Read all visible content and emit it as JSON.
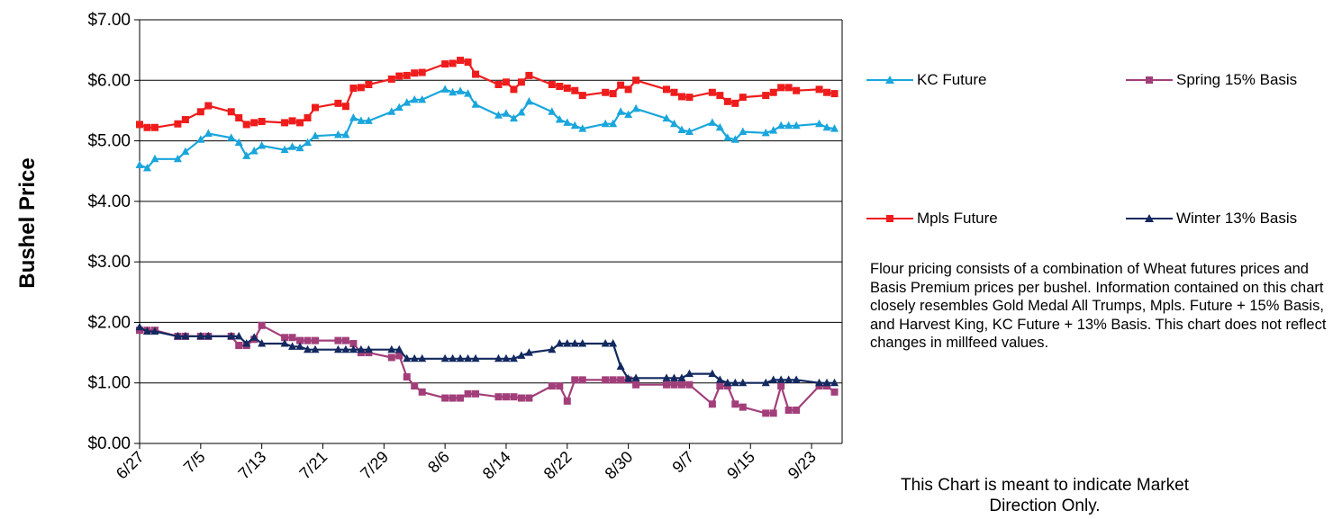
{
  "chart_data": {
    "type": "line",
    "title": "",
    "xlabel": "",
    "ylabel": "Bushel Price",
    "ylim": [
      0,
      7
    ],
    "yticks": [
      "$0.00",
      "$1.00",
      "$2.00",
      "$3.00",
      "$4.00",
      "$5.00",
      "$6.00",
      "$7.00"
    ],
    "xticks": [
      "6/27",
      "7/5",
      "7/13",
      "7/21",
      "7/29",
      "8/6",
      "8/14",
      "8/22",
      "8/30",
      "9/7",
      "9/15",
      "9/23"
    ],
    "x_range": [
      "6/27",
      "9/27"
    ],
    "grid": "horizontal",
    "legend_position": "right",
    "series": [
      {
        "name": "KC Future",
        "color": "#1aa6dc",
        "marker": "triangle",
        "points": [
          [
            "6/27",
            4.6
          ],
          [
            "6/28",
            4.55
          ],
          [
            "6/29",
            4.7
          ],
          [
            "7/2",
            4.7
          ],
          [
            "7/3",
            4.82
          ],
          [
            "7/5",
            5.02
          ],
          [
            "7/6",
            5.12
          ],
          [
            "7/9",
            5.05
          ],
          [
            "7/10",
            4.97
          ],
          [
            "7/11",
            4.75
          ],
          [
            "7/12",
            4.83
          ],
          [
            "7/13",
            4.92
          ],
          [
            "7/16",
            4.85
          ],
          [
            "7/17",
            4.9
          ],
          [
            "7/18",
            4.88
          ],
          [
            "7/19",
            4.97
          ],
          [
            "7/20",
            5.08
          ],
          [
            "7/23",
            5.1
          ],
          [
            "7/24",
            5.1
          ],
          [
            "7/25",
            5.38
          ],
          [
            "7/26",
            5.33
          ],
          [
            "7/27",
            5.33
          ],
          [
            "7/30",
            5.48
          ],
          [
            "7/31",
            5.55
          ],
          [
            "8/1",
            5.63
          ],
          [
            "8/2",
            5.68
          ],
          [
            "8/3",
            5.68
          ],
          [
            "8/6",
            5.85
          ],
          [
            "8/7",
            5.8
          ],
          [
            "8/8",
            5.82
          ],
          [
            "8/9",
            5.78
          ],
          [
            "8/10",
            5.6
          ],
          [
            "8/13",
            5.42
          ],
          [
            "8/14",
            5.45
          ],
          [
            "8/15",
            5.37
          ],
          [
            "8/16",
            5.47
          ],
          [
            "8/17",
            5.65
          ],
          [
            "8/20",
            5.48
          ],
          [
            "8/21",
            5.35
          ],
          [
            "8/22",
            5.3
          ],
          [
            "8/23",
            5.25
          ],
          [
            "8/24",
            5.2
          ],
          [
            "8/27",
            5.28
          ],
          [
            "8/28",
            5.28
          ],
          [
            "8/29",
            5.48
          ],
          [
            "8/30",
            5.43
          ],
          [
            "8/31",
            5.53
          ],
          [
            "9/4",
            5.37
          ],
          [
            "9/5",
            5.28
          ],
          [
            "9/6",
            5.18
          ],
          [
            "9/7",
            5.15
          ],
          [
            "9/10",
            5.3
          ],
          [
            "9/11",
            5.22
          ],
          [
            "9/12",
            5.05
          ],
          [
            "9/13",
            5.02
          ],
          [
            "9/14",
            5.15
          ],
          [
            "9/17",
            5.13
          ],
          [
            "9/18",
            5.17
          ],
          [
            "9/19",
            5.25
          ],
          [
            "9/20",
            5.25
          ],
          [
            "9/21",
            5.25
          ],
          [
            "9/24",
            5.28
          ],
          [
            "9/25",
            5.22
          ],
          [
            "9/26",
            5.2
          ]
        ]
      },
      {
        "name": "Mpls Future",
        "color": "#ee1c1c",
        "marker": "square",
        "points": [
          [
            "6/27",
            5.27
          ],
          [
            "6/28",
            5.22
          ],
          [
            "6/29",
            5.22
          ],
          [
            "7/2",
            5.28
          ],
          [
            "7/3",
            5.35
          ],
          [
            "7/5",
            5.48
          ],
          [
            "7/6",
            5.58
          ],
          [
            "7/9",
            5.48
          ],
          [
            "7/10",
            5.38
          ],
          [
            "7/11",
            5.27
          ],
          [
            "7/12",
            5.3
          ],
          [
            "7/13",
            5.32
          ],
          [
            "7/16",
            5.3
          ],
          [
            "7/17",
            5.33
          ],
          [
            "7/18",
            5.3
          ],
          [
            "7/19",
            5.38
          ],
          [
            "7/20",
            5.55
          ],
          [
            "7/23",
            5.62
          ],
          [
            "7/24",
            5.57
          ],
          [
            "7/25",
            5.87
          ],
          [
            "7/26",
            5.88
          ],
          [
            "7/27",
            5.93
          ],
          [
            "7/30",
            6.02
          ],
          [
            "7/31",
            6.07
          ],
          [
            "8/1",
            6.08
          ],
          [
            "8/2",
            6.12
          ],
          [
            "8/3",
            6.13
          ],
          [
            "8/6",
            6.27
          ],
          [
            "8/7",
            6.28
          ],
          [
            "8/8",
            6.33
          ],
          [
            "8/9",
            6.3
          ],
          [
            "8/10",
            6.1
          ],
          [
            "8/13",
            5.93
          ],
          [
            "8/14",
            5.97
          ],
          [
            "8/15",
            5.85
          ],
          [
            "8/16",
            5.97
          ],
          [
            "8/17",
            6.08
          ],
          [
            "8/20",
            5.93
          ],
          [
            "8/21",
            5.9
          ],
          [
            "8/22",
            5.87
          ],
          [
            "8/23",
            5.83
          ],
          [
            "8/24",
            5.75
          ],
          [
            "8/27",
            5.8
          ],
          [
            "8/28",
            5.78
          ],
          [
            "8/29",
            5.92
          ],
          [
            "8/30",
            5.85
          ],
          [
            "8/31",
            6.0
          ],
          [
            "9/4",
            5.85
          ],
          [
            "9/5",
            5.8
          ],
          [
            "9/6",
            5.73
          ],
          [
            "9/7",
            5.72
          ],
          [
            "9/10",
            5.8
          ],
          [
            "9/11",
            5.75
          ],
          [
            "9/12",
            5.65
          ],
          [
            "9/13",
            5.62
          ],
          [
            "9/14",
            5.72
          ],
          [
            "9/17",
            5.75
          ],
          [
            "9/18",
            5.8
          ],
          [
            "9/19",
            5.88
          ],
          [
            "9/20",
            5.88
          ],
          [
            "9/21",
            5.83
          ],
          [
            "9/24",
            5.85
          ],
          [
            "9/25",
            5.8
          ],
          [
            "9/26",
            5.78
          ]
        ]
      },
      {
        "name": "Spring 15% Basis",
        "color": "#a23f7a",
        "marker": "square",
        "points": [
          [
            "6/27",
            1.87
          ],
          [
            "6/28",
            1.87
          ],
          [
            "6/29",
            1.87
          ],
          [
            "7/2",
            1.77
          ],
          [
            "7/3",
            1.77
          ],
          [
            "7/5",
            1.77
          ],
          [
            "7/6",
            1.77
          ],
          [
            "7/9",
            1.77
          ],
          [
            "7/10",
            1.62
          ],
          [
            "7/11",
            1.62
          ],
          [
            "7/12",
            1.72
          ],
          [
            "7/13",
            1.95
          ],
          [
            "7/16",
            1.75
          ],
          [
            "7/17",
            1.75
          ],
          [
            "7/18",
            1.7
          ],
          [
            "7/19",
            1.7
          ],
          [
            "7/20",
            1.7
          ],
          [
            "7/23",
            1.7
          ],
          [
            "7/24",
            1.7
          ],
          [
            "7/25",
            1.65
          ],
          [
            "7/26",
            1.5
          ],
          [
            "7/27",
            1.5
          ],
          [
            "7/30",
            1.42
          ],
          [
            "7/31",
            1.45
          ],
          [
            "8/1",
            1.1
          ],
          [
            "8/2",
            0.95
          ],
          [
            "8/3",
            0.85
          ],
          [
            "8/6",
            0.75
          ],
          [
            "8/7",
            0.75
          ],
          [
            "8/8",
            0.75
          ],
          [
            "8/9",
            0.82
          ],
          [
            "8/10",
            0.82
          ],
          [
            "8/13",
            0.77
          ],
          [
            "8/14",
            0.77
          ],
          [
            "8/15",
            0.77
          ],
          [
            "8/16",
            0.75
          ],
          [
            "8/17",
            0.75
          ],
          [
            "8/20",
            0.95
          ],
          [
            "8/21",
            0.95
          ],
          [
            "8/22",
            0.7
          ],
          [
            "8/23",
            1.05
          ],
          [
            "8/24",
            1.05
          ],
          [
            "8/27",
            1.05
          ],
          [
            "8/28",
            1.05
          ],
          [
            "8/29",
            1.05
          ],
          [
            "8/30",
            1.05
          ],
          [
            "8/31",
            0.97
          ],
          [
            "9/4",
            0.97
          ],
          [
            "9/5",
            0.97
          ],
          [
            "9/6",
            0.97
          ],
          [
            "9/7",
            0.97
          ],
          [
            "9/10",
            0.65
          ],
          [
            "9/11",
            0.95
          ],
          [
            "9/12",
            0.95
          ],
          [
            "9/13",
            0.65
          ],
          [
            "9/14",
            0.6
          ],
          [
            "9/17",
            0.5
          ],
          [
            "9/18",
            0.5
          ],
          [
            "9/19",
            0.95
          ],
          [
            "9/20",
            0.55
          ],
          [
            "9/21",
            0.55
          ],
          [
            "9/24",
            0.95
          ],
          [
            "9/25",
            0.95
          ],
          [
            "9/26",
            0.85
          ]
        ]
      },
      {
        "name": "Winter 13% Basis",
        "color": "#13295f",
        "marker": "triangle",
        "points": [
          [
            "6/27",
            1.92
          ],
          [
            "6/28",
            1.85
          ],
          [
            "6/29",
            1.85
          ],
          [
            "7/2",
            1.77
          ],
          [
            "7/3",
            1.77
          ],
          [
            "7/5",
            1.77
          ],
          [
            "7/6",
            1.77
          ],
          [
            "7/9",
            1.77
          ],
          [
            "7/10",
            1.77
          ],
          [
            "7/11",
            1.65
          ],
          [
            "7/12",
            1.75
          ],
          [
            "7/13",
            1.65
          ],
          [
            "7/16",
            1.65
          ],
          [
            "7/17",
            1.6
          ],
          [
            "7/18",
            1.6
          ],
          [
            "7/19",
            1.55
          ],
          [
            "7/20",
            1.55
          ],
          [
            "7/23",
            1.55
          ],
          [
            "7/24",
            1.55
          ],
          [
            "7/25",
            1.55
          ],
          [
            "7/26",
            1.55
          ],
          [
            "7/27",
            1.55
          ],
          [
            "7/30",
            1.55
          ],
          [
            "7/31",
            1.55
          ],
          [
            "8/1",
            1.4
          ],
          [
            "8/2",
            1.4
          ],
          [
            "8/3",
            1.4
          ],
          [
            "8/6",
            1.4
          ],
          [
            "8/7",
            1.4
          ],
          [
            "8/8",
            1.4
          ],
          [
            "8/9",
            1.4
          ],
          [
            "8/10",
            1.4
          ],
          [
            "8/13",
            1.4
          ],
          [
            "8/14",
            1.4
          ],
          [
            "8/15",
            1.4
          ],
          [
            "8/16",
            1.45
          ],
          [
            "8/17",
            1.5
          ],
          [
            "8/20",
            1.55
          ],
          [
            "8/21",
            1.65
          ],
          [
            "8/22",
            1.65
          ],
          [
            "8/23",
            1.65
          ],
          [
            "8/24",
            1.65
          ],
          [
            "8/27",
            1.65
          ],
          [
            "8/28",
            1.65
          ],
          [
            "8/29",
            1.27
          ],
          [
            "8/30",
            1.07
          ],
          [
            "8/31",
            1.08
          ],
          [
            "9/4",
            1.08
          ],
          [
            "9/5",
            1.08
          ],
          [
            "9/6",
            1.08
          ],
          [
            "9/7",
            1.15
          ],
          [
            "9/10",
            1.15
          ],
          [
            "9/11",
            1.05
          ],
          [
            "9/12",
            1.0
          ],
          [
            "9/13",
            1.0
          ],
          [
            "9/14",
            1.0
          ],
          [
            "9/17",
            1.0
          ],
          [
            "9/18",
            1.05
          ],
          [
            "9/19",
            1.05
          ],
          [
            "9/20",
            1.05
          ],
          [
            "9/21",
            1.05
          ],
          [
            "9/24",
            1.0
          ],
          [
            "9/25",
            1.0
          ],
          [
            "9/26",
            1.0
          ]
        ]
      }
    ]
  },
  "note": "Flour pricing consists of a combination of Wheat futures prices and Basis Premium prices per bushel. Information contained on this chart closely resembles Gold Medal All Trumps, Mpls. Future + 15% Basis, and Harvest King, KC Future + 13% Basis. This chart does not reflect changes in millfeed values.",
  "disclaimer": "This Chart is meant to indicate Market Direction Only."
}
